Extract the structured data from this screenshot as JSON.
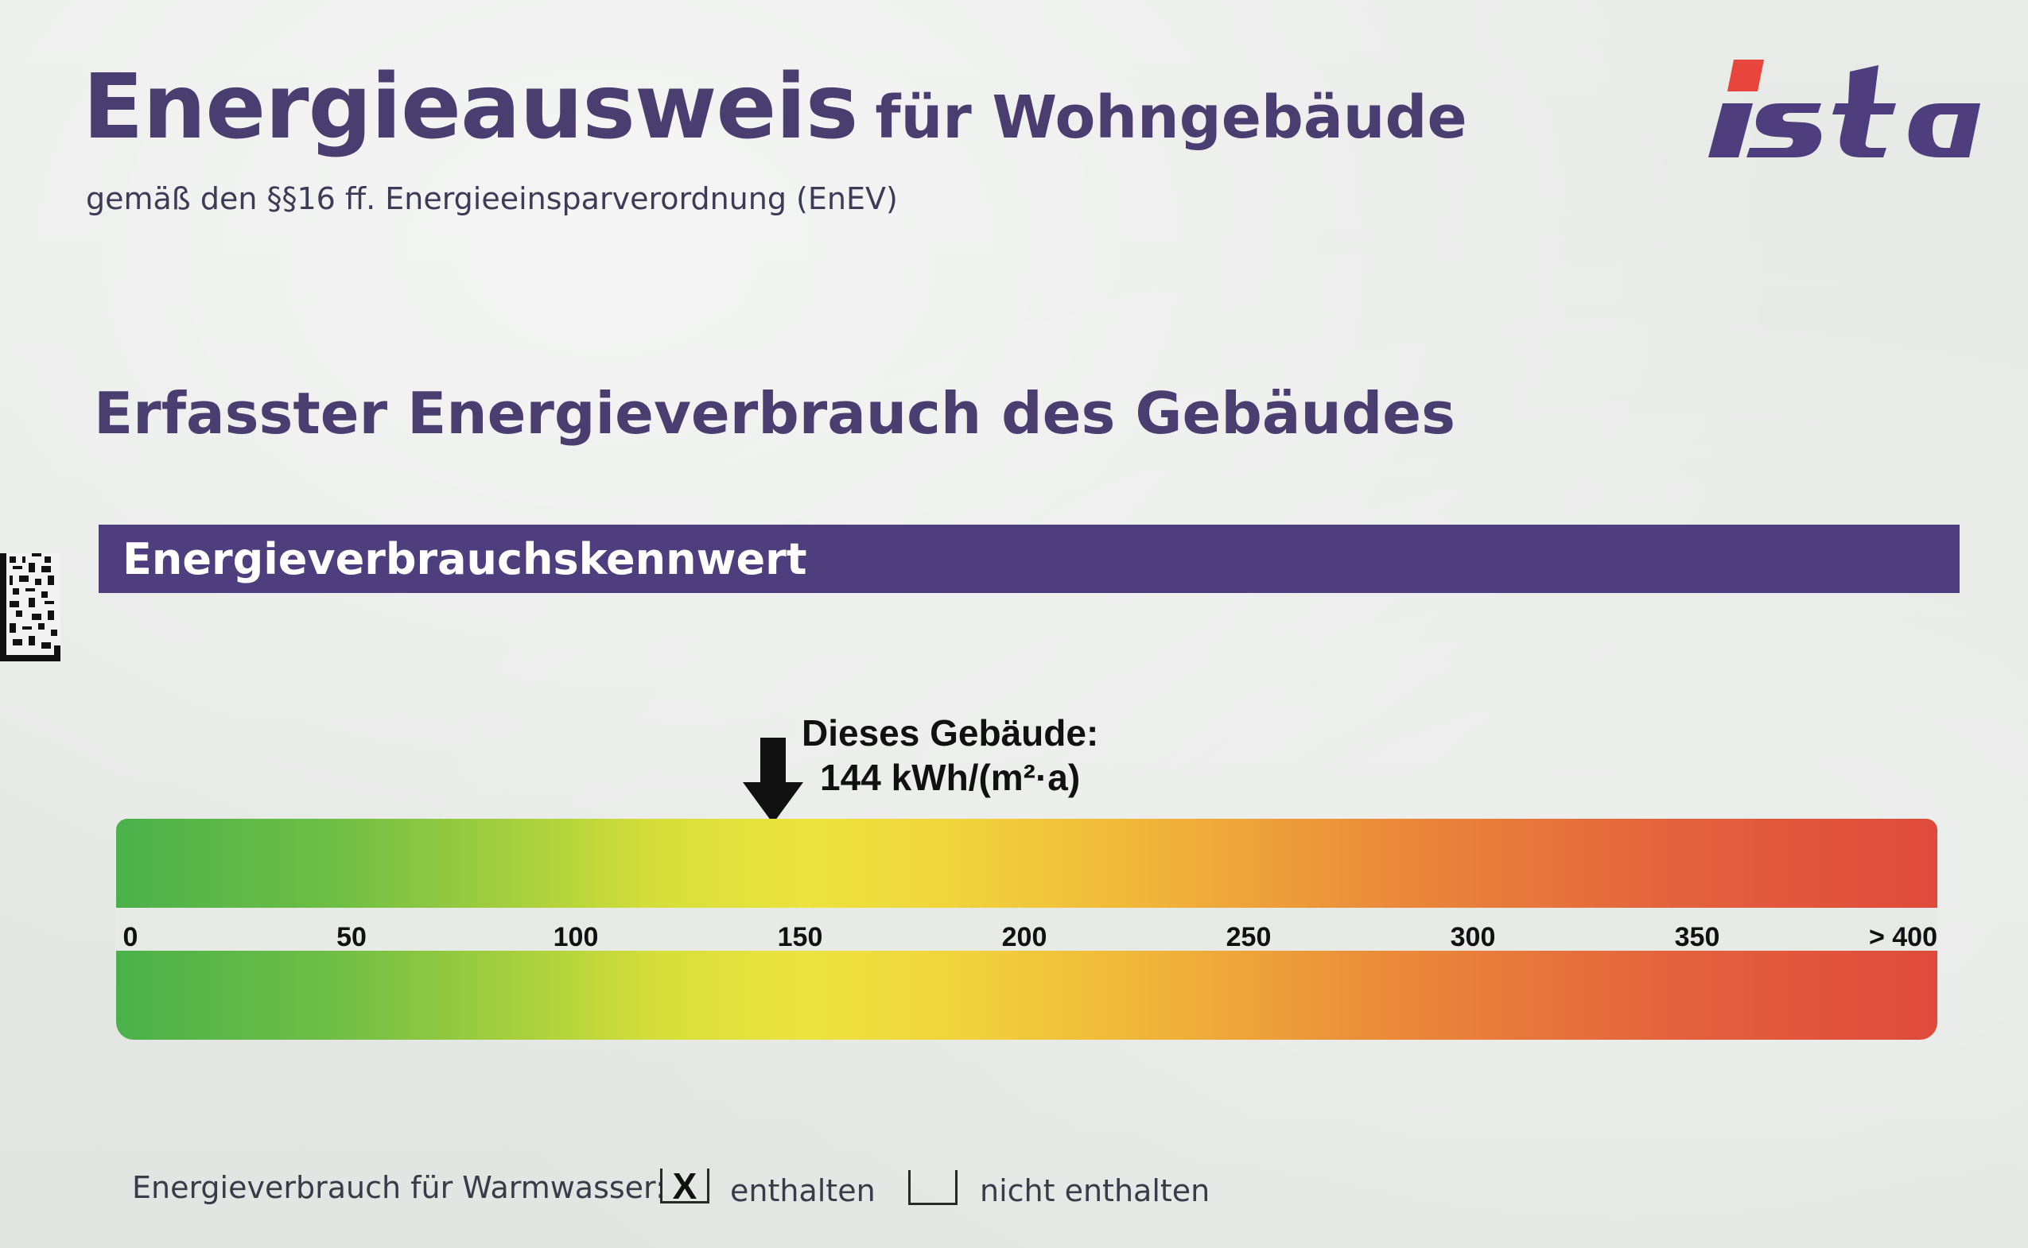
{
  "header": {
    "title_main": "Energieausweis",
    "title_sub": "für Wohngebäude",
    "subtitle": "gemäß den §§16 ff. Energieeinsparverordnung (EnEV)"
  },
  "logo": {
    "text": "ista",
    "accent_color": "#e8453c",
    "brand_color": "#4e3e7e"
  },
  "section": {
    "heading": "Erfasster Energieverbrauch des Gebäudes",
    "band_title": "Energieverbrauchskennwert"
  },
  "indicator": {
    "label": "Dieses Gebäude:",
    "value_text": "144 kWh/(m²·a)",
    "value": 144
  },
  "scale": {
    "min": 0,
    "max": 400,
    "ticks": [
      "0",
      "50",
      "100",
      "150",
      "200",
      "250",
      "300",
      "350",
      "> 400"
    ],
    "tick_values": [
      0,
      50,
      100,
      150,
      200,
      250,
      300,
      350,
      400
    ],
    "colors": {
      "low": "#4bb14b",
      "mid": "#ece33e",
      "high": "#df4a3c"
    }
  },
  "warmwasser": {
    "label": "Energieverbrauch für Warmwasser:",
    "options": [
      {
        "label": "enthalten",
        "checked": true,
        "mark": "X"
      },
      {
        "label": "nicht enthalten",
        "checked": false,
        "mark": ""
      }
    ]
  }
}
